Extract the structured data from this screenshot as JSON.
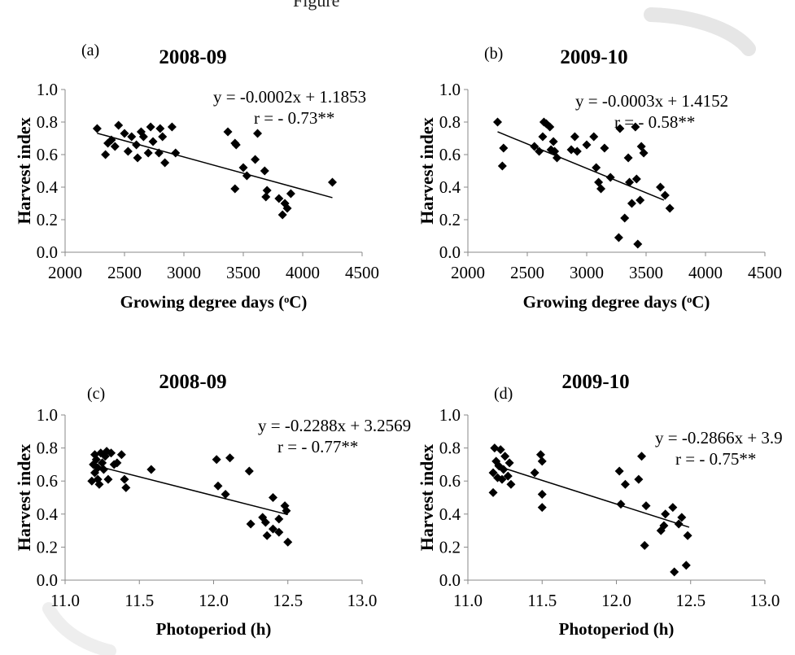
{
  "header": {
    "cut_text": "Figure"
  },
  "chart_data": [
    {
      "type": "scatter",
      "panel_label": "(a)",
      "title": "2008-09",
      "xlabel": "Growing degree days (ᵒC)",
      "ylabel": "Harvest index",
      "xlim": [
        2000,
        4500
      ],
      "ylim": [
        0,
        1
      ],
      "xticks": [
        "2000",
        "2500",
        "3000",
        "3500",
        "4000",
        "4500"
      ],
      "yticks": [
        "0.0",
        "0.2",
        "0.4",
        "0.6",
        "0.8",
        "1.0"
      ],
      "equation": "y = -0.0002x + 1.1853",
      "r_text": "r = - 0.73**",
      "trend": {
        "slope": -0.0002,
        "intercept": 1.1853,
        "x_range": [
          2270,
          4250
        ]
      },
      "points": [
        [
          2270,
          0.76
        ],
        [
          2340,
          0.6
        ],
        [
          2360,
          0.67
        ],
        [
          2390,
          0.69
        ],
        [
          2420,
          0.65
        ],
        [
          2450,
          0.78
        ],
        [
          2500,
          0.73
        ],
        [
          2530,
          0.62
        ],
        [
          2560,
          0.71
        ],
        [
          2600,
          0.66
        ],
        [
          2610,
          0.58
        ],
        [
          2640,
          0.74
        ],
        [
          2660,
          0.71
        ],
        [
          2700,
          0.61
        ],
        [
          2720,
          0.77
        ],
        [
          2740,
          0.68
        ],
        [
          2790,
          0.61
        ],
        [
          2800,
          0.76
        ],
        [
          2820,
          0.71
        ],
        [
          2840,
          0.55
        ],
        [
          2900,
          0.77
        ],
        [
          2930,
          0.61
        ],
        [
          3370,
          0.74
        ],
        [
          3430,
          0.67
        ],
        [
          3440,
          0.66
        ],
        [
          3430,
          0.39
        ],
        [
          3500,
          0.52
        ],
        [
          3530,
          0.47
        ],
        [
          3600,
          0.57
        ],
        [
          3620,
          0.73
        ],
        [
          3680,
          0.5
        ],
        [
          3700,
          0.38
        ],
        [
          3690,
          0.34
        ],
        [
          3800,
          0.33
        ],
        [
          3830,
          0.23
        ],
        [
          3850,
          0.3
        ],
        [
          3870,
          0.27
        ],
        [
          3900,
          0.36
        ],
        [
          4250,
          0.43
        ]
      ]
    },
    {
      "type": "scatter",
      "panel_label": "(b)",
      "title": "2009-10",
      "xlabel": "Growing degree days (ᵒC)",
      "ylabel": "Harvest index",
      "xlim": [
        2000,
        4500
      ],
      "ylim": [
        0,
        1
      ],
      "xticks": [
        "2000",
        "2500",
        "3000",
        "3500",
        "4000",
        "4500"
      ],
      "yticks": [
        "0.0",
        "0.2",
        "0.4",
        "0.6",
        "0.8",
        "1.0"
      ],
      "equation": "y = -0.0003x + 1.4152",
      "r_text": "r = - 0.58**",
      "trend": {
        "slope": -0.0003,
        "intercept": 1.4152,
        "x_range": [
          2250,
          3650
        ]
      },
      "points": [
        [
          2250,
          0.8
        ],
        [
          2300,
          0.64
        ],
        [
          2290,
          0.53
        ],
        [
          2560,
          0.65
        ],
        [
          2600,
          0.62
        ],
        [
          2630,
          0.71
        ],
        [
          2640,
          0.8
        ],
        [
          2660,
          0.79
        ],
        [
          2690,
          0.77
        ],
        [
          2700,
          0.63
        ],
        [
          2720,
          0.68
        ],
        [
          2730,
          0.62
        ],
        [
          2750,
          0.58
        ],
        [
          2870,
          0.63
        ],
        [
          2900,
          0.71
        ],
        [
          2920,
          0.62
        ],
        [
          3000,
          0.66
        ],
        [
          3060,
          0.71
        ],
        [
          3080,
          0.52
        ],
        [
          3100,
          0.43
        ],
        [
          3120,
          0.39
        ],
        [
          3150,
          0.64
        ],
        [
          3200,
          0.46
        ],
        [
          3270,
          0.09
        ],
        [
          3280,
          0.76
        ],
        [
          3320,
          0.21
        ],
        [
          3350,
          0.58
        ],
        [
          3360,
          0.43
        ],
        [
          3380,
          0.3
        ],
        [
          3410,
          0.77
        ],
        [
          3420,
          0.45
        ],
        [
          3430,
          0.05
        ],
        [
          3450,
          0.32
        ],
        [
          3460,
          0.65
        ],
        [
          3480,
          0.61
        ],
        [
          3620,
          0.4
        ],
        [
          3660,
          0.35
        ],
        [
          3700,
          0.27
        ]
      ]
    },
    {
      "type": "scatter",
      "panel_label": "(c)",
      "title": "2008-09",
      "xlabel": "Photoperiod (h)",
      "ylabel": "Harvest index",
      "xlim": [
        11,
        13
      ],
      "ylim": [
        0,
        1
      ],
      "xticks": [
        "11.0",
        "11.5",
        "12.0",
        "12.5",
        "13.0"
      ],
      "yticks": [
        "0.0",
        "0.2",
        "0.4",
        "0.6",
        "0.8",
        "1.0"
      ],
      "equation": "y = -0.2288x + 3.2569",
      "r_text": "r = - 0.77**",
      "trend": {
        "slope": -0.2288,
        "intercept": 3.2569,
        "x_range": [
          11.18,
          12.5
        ]
      },
      "points": [
        [
          11.18,
          0.6
        ],
        [
          11.19,
          0.7
        ],
        [
          11.2,
          0.76
        ],
        [
          11.2,
          0.65
        ],
        [
          11.21,
          0.73
        ],
        [
          11.22,
          0.68
        ],
        [
          11.22,
          0.61
        ],
        [
          11.23,
          0.58
        ],
        [
          11.24,
          0.77
        ],
        [
          11.25,
          0.71
        ],
        [
          11.26,
          0.67
        ],
        [
          11.27,
          0.75
        ],
        [
          11.28,
          0.78
        ],
        [
          11.29,
          0.61
        ],
        [
          11.31,
          0.77
        ],
        [
          11.33,
          0.7
        ],
        [
          11.35,
          0.71
        ],
        [
          11.38,
          0.76
        ],
        [
          11.4,
          0.61
        ],
        [
          11.41,
          0.56
        ],
        [
          11.58,
          0.67
        ],
        [
          12.02,
          0.73
        ],
        [
          12.03,
          0.57
        ],
        [
          12.08,
          0.52
        ],
        [
          12.11,
          0.74
        ],
        [
          12.24,
          0.66
        ],
        [
          12.25,
          0.34
        ],
        [
          12.33,
          0.38
        ],
        [
          12.35,
          0.35
        ],
        [
          12.36,
          0.27
        ],
        [
          12.4,
          0.31
        ],
        [
          12.4,
          0.5
        ],
        [
          12.44,
          0.37
        ],
        [
          12.44,
          0.29
        ],
        [
          12.48,
          0.45
        ],
        [
          12.49,
          0.42
        ],
        [
          12.5,
          0.23
        ]
      ]
    },
    {
      "type": "scatter",
      "panel_label": "(d)",
      "title": "2009-10",
      "xlabel": "Photoperiod (h)",
      "ylabel": "Harvest index",
      "xlim": [
        11,
        13
      ],
      "ylim": [
        0,
        1
      ],
      "xticks": [
        "11.0",
        "11.5",
        "12.0",
        "12.5",
        "13.0"
      ],
      "yticks": [
        "0.0",
        "0.2",
        "0.4",
        "0.6",
        "0.8",
        "1.0"
      ],
      "equation": "y = -0.2866x + 3.9",
      "r_text": "r = - 0.75**",
      "trend": {
        "slope": -0.2866,
        "intercept": 3.9,
        "x_range": [
          11.18,
          12.49
        ]
      },
      "points": [
        [
          11.17,
          0.53
        ],
        [
          11.17,
          0.65
        ],
        [
          11.18,
          0.8
        ],
        [
          11.19,
          0.72
        ],
        [
          11.2,
          0.62
        ],
        [
          11.21,
          0.69
        ],
        [
          11.22,
          0.79
        ],
        [
          11.23,
          0.61
        ],
        [
          11.24,
          0.67
        ],
        [
          11.25,
          0.75
        ],
        [
          11.27,
          0.63
        ],
        [
          11.28,
          0.71
        ],
        [
          11.29,
          0.58
        ],
        [
          11.45,
          0.65
        ],
        [
          11.49,
          0.76
        ],
        [
          11.5,
          0.72
        ],
        [
          11.5,
          0.52
        ],
        [
          11.5,
          0.44
        ],
        [
          12.02,
          0.66
        ],
        [
          12.03,
          0.46
        ],
        [
          12.06,
          0.58
        ],
        [
          12.15,
          0.61
        ],
        [
          12.17,
          0.75
        ],
        [
          12.19,
          0.21
        ],
        [
          12.2,
          0.45
        ],
        [
          12.3,
          0.3
        ],
        [
          12.32,
          0.33
        ],
        [
          12.33,
          0.4
        ],
        [
          12.38,
          0.44
        ],
        [
          12.39,
          0.05
        ],
        [
          12.42,
          0.34
        ],
        [
          12.44,
          0.38
        ],
        [
          12.47,
          0.09
        ],
        [
          12.48,
          0.27
        ]
      ]
    }
  ]
}
